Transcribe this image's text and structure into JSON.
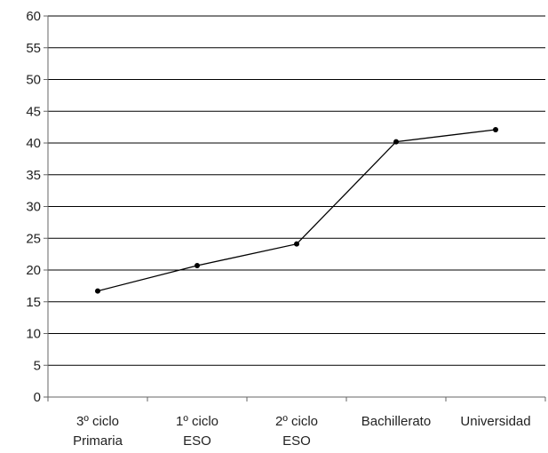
{
  "chart_data": {
    "type": "line",
    "title": "",
    "xlabel": "",
    "ylabel": "",
    "categories": [
      [
        "3º ciclo",
        "Primaria"
      ],
      [
        "1º ciclo",
        "ESO"
      ],
      [
        "2º ciclo",
        "ESO"
      ],
      [
        "Bachillerato"
      ],
      [
        "Universidad"
      ]
    ],
    "series": [
      {
        "values": [
          16.7,
          20.7,
          24.1,
          40.2,
          42.1
        ]
      }
    ],
    "ylim": [
      0,
      60
    ],
    "yticks": [
      "0",
      "5",
      "10",
      "15",
      "20",
      "25",
      "30",
      "35",
      "40",
      "45",
      "50",
      "55",
      "60"
    ],
    "grid": true,
    "legend": "none",
    "colors": {
      "line": "#000000",
      "grid": "#000000",
      "axis": "#666666"
    }
  }
}
